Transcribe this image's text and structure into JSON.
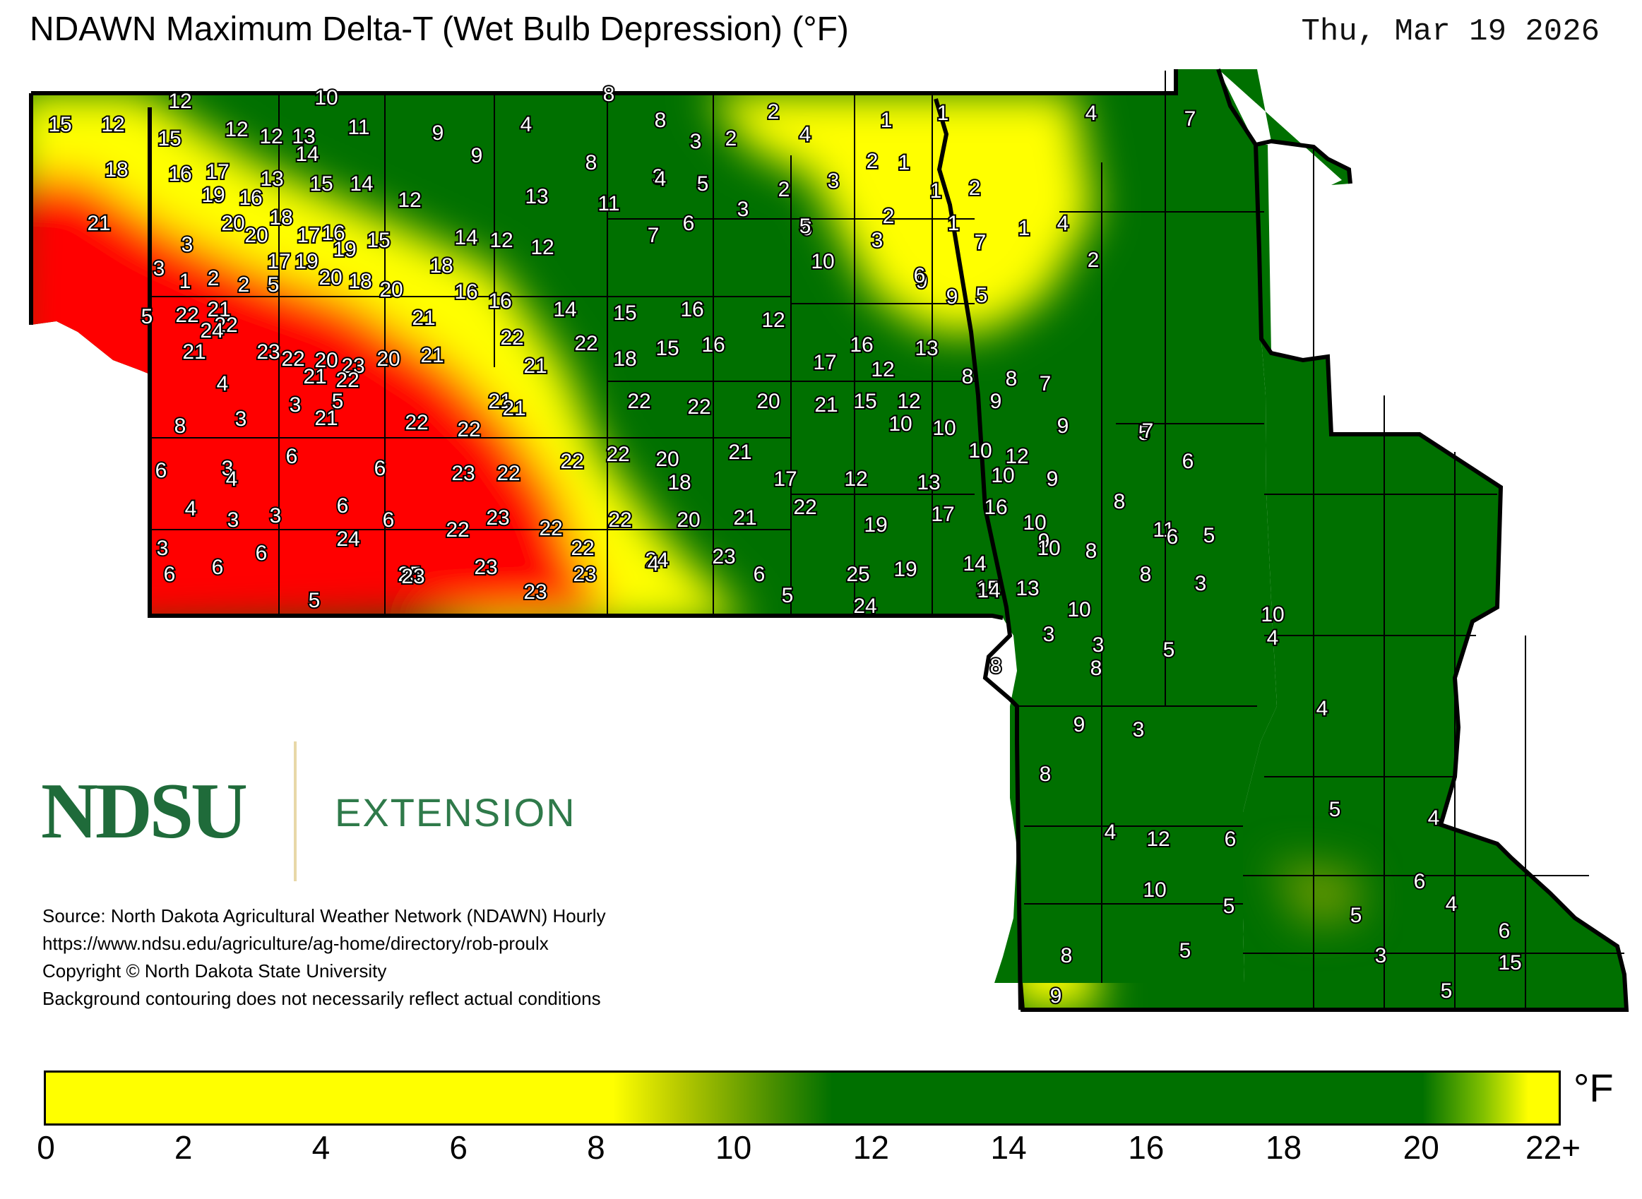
{
  "title": "NDAWN Maximum Delta-T (Wet Bulb Depression) (°F)",
  "date": "Thu, Mar 19 2026",
  "logo": {
    "ndsu": "NDSU",
    "extension": "EXTENSION"
  },
  "credits": [
    "Source: North Dakota Agricultural Weather Network (NDAWN) Hourly",
    "https://www.ndsu.edu/agriculture/ag-home/directory/rob-proulx",
    "Copyright © North Dakota State University",
    "Background contouring does not necessarily reflect actual conditions"
  ],
  "legend": {
    "unit": "°F",
    "ticks": [
      "0",
      "2",
      "4",
      "6",
      "8",
      "10",
      "12",
      "14",
      "16",
      "18",
      "20",
      "22+"
    ],
    "colors": {
      "low": "#ffff00",
      "mid": "#007000",
      "high": "#ff0000",
      "transition": "#ffa500"
    }
  },
  "station_values": [
    "15",
    "12",
    "12",
    "10",
    "8",
    "15",
    "12",
    "12",
    "13",
    "11",
    "9",
    "4",
    "8",
    "3",
    "2",
    "2",
    "4",
    "1",
    "1",
    "4",
    "7",
    "14",
    "9",
    "8",
    "3",
    "6",
    "18",
    "16",
    "17",
    "13",
    "15",
    "14",
    "12",
    "13",
    "11",
    "4",
    "5",
    "2",
    "3",
    "2",
    "1",
    "1",
    "2",
    "21",
    "19",
    "16",
    "18",
    "17",
    "16",
    "15",
    "14",
    "12",
    "12",
    "7",
    "6",
    "3",
    "6",
    "5",
    "3",
    "2",
    "1",
    "1",
    "3",
    "3",
    "20",
    "20",
    "17",
    "19",
    "19",
    "20",
    "18",
    "20",
    "18",
    "16",
    "16",
    "14",
    "15",
    "16",
    "12",
    "10",
    "9",
    "9",
    "6",
    "7",
    "5",
    "4",
    "2",
    "1",
    "2",
    "2",
    "5",
    "5",
    "22",
    "21",
    "22",
    "21",
    "24",
    "23",
    "22",
    "20",
    "23",
    "20",
    "21",
    "21",
    "21",
    "22",
    "21",
    "22",
    "18",
    "15",
    "16",
    "17",
    "16",
    "12",
    "13",
    "8",
    "8",
    "7",
    "8",
    "4",
    "3",
    "3",
    "5",
    "22",
    "21",
    "22",
    "22",
    "21",
    "21",
    "22",
    "22",
    "20",
    "21",
    "15",
    "12",
    "10",
    "10",
    "9",
    "9",
    "5",
    "6",
    "3",
    "4",
    "6",
    "6",
    "23",
    "22",
    "22",
    "22",
    "20",
    "18",
    "21",
    "17",
    "12",
    "13",
    "10",
    "12",
    "10",
    "9",
    "7",
    "6",
    "4",
    "3",
    "3",
    "6",
    "6",
    "22",
    "23",
    "22",
    "22",
    "22",
    "20",
    "21",
    "22",
    "19",
    "17",
    "16",
    "10",
    "9",
    "8",
    "11",
    "5",
    "3",
    "6",
    "6",
    "6",
    "24",
    "25",
    "23",
    "23",
    "23",
    "23",
    "24",
    "23",
    "25",
    "19",
    "14",
    "15",
    "10",
    "8",
    "8",
    "6",
    "3",
    "5",
    "4",
    "5",
    "6",
    "24",
    "14",
    "13",
    "10",
    "10",
    "4",
    "3",
    "3",
    "8",
    "8",
    "4",
    "5",
    "9",
    "3",
    "8",
    "5",
    "4",
    "4",
    "12",
    "6",
    "6",
    "10",
    "5",
    "5",
    "4",
    "8",
    "5",
    "3",
    "6",
    "15",
    "9",
    "5",
    "5",
    "6",
    "16",
    "5"
  ]
}
